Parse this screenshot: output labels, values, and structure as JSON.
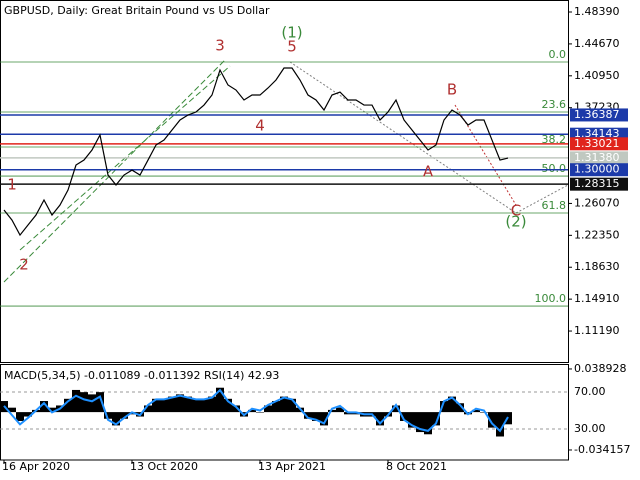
{
  "chart_data": [
    {
      "type": "line",
      "title": "GBPUSD, Daily:  Great Britain Pound vs US Dollar",
      "categories": [
        "16 Apr 2020",
        null,
        null,
        null,
        null,
        null,
        null,
        null,
        null,
        null,
        null,
        null,
        null,
        null,
        null,
        null,
        "13 Oct 2020",
        null,
        null,
        null,
        null,
        null,
        null,
        null,
        null,
        null,
        null,
        null,
        null,
        null,
        null,
        null,
        "13 Apr 2021",
        null,
        null,
        null,
        null,
        null,
        null,
        null,
        null,
        null,
        null,
        null,
        null,
        null,
        null,
        null,
        "8 Oct 2021",
        null,
        null,
        null,
        null,
        null,
        null,
        null,
        null,
        null,
        null,
        null,
        null,
        null,
        null,
        null
      ],
      "series": [
        {
          "color": "#000000",
          "values": [
            1.253,
            1.2413,
            1.2238,
            1.2355,
            1.2472,
            1.2647,
            1.2472,
            1.2588,
            1.2763,
            1.3055,
            1.3113,
            1.323,
            1.3405,
            1.2938,
            1.2822,
            1.2938,
            1.2996,
            1.2938,
            1.3113,
            1.3288,
            1.3346,
            1.3463,
            1.358,
            1.3638,
            1.3673,
            1.3754,
            1.3871,
            1.4163,
            1.3988,
            1.3929,
            1.3813,
            1.3871,
            1.3871,
            1.3953,
            1.4046,
            1.4186,
            1.4186,
            1.4046,
            1.3871,
            1.3813,
            1.3696,
            1.3871,
            1.3906,
            1.3813,
            1.3813,
            1.3754,
            1.3754,
            1.358,
            1.3673,
            1.3813,
            1.358,
            1.3463,
            1.3346,
            1.323,
            1.3288,
            1.358,
            1.3696,
            1.3638,
            1.3521,
            1.358,
            1.358,
            1.3346,
            1.3113,
            1.3136
          ]
        }
      ],
      "ylim": [
        1.0758,
        1.4979
      ],
      "yticks": [
        {
          "value": 1.4839,
          "label": "1.48390"
        },
        {
          "value": 1.4467,
          "label": "1.44670"
        },
        {
          "value": 1.4095,
          "label": "1.40950"
        },
        {
          "value": 1.3723,
          "label": "1.37230"
        },
        {
          "value": 1.2607,
          "label": "1.26070"
        },
        {
          "value": 1.2235,
          "label": "1.22350"
        },
        {
          "value": 1.1863,
          "label": "1.18630"
        },
        {
          "value": 1.1491,
          "label": "1.14910"
        },
        {
          "value": 1.1119,
          "label": "1.11190"
        }
      ],
      "levels": [
        {
          "value": 1.36387,
          "label": "1.36387",
          "color": "#1c3aa9"
        },
        {
          "value": 1.34143,
          "label": "1.34143",
          "color": "#1c3aa9"
        },
        {
          "value": 1.33021,
          "label": "1.33021",
          "color": "#e0241c"
        },
        {
          "value": 1.3138,
          "label": "1.31380",
          "color": "#c0c8c0"
        },
        {
          "value": 1.3,
          "label": "1.30000",
          "color": "#1c3aa9"
        },
        {
          "value": 1.28315,
          "label": "1.28315",
          "color": "#101010"
        }
      ],
      "fib_levels": [
        {
          "label": "0.0",
          "price": 1.4256
        },
        {
          "label": "23.6",
          "price": 1.3673
        },
        {
          "label": "38.2",
          "price": 1.3265
        },
        {
          "label": "50.0",
          "price": 1.2926
        },
        {
          "label": "61.8",
          "price": 1.2495
        },
        {
          "label": "100.0",
          "price": 1.141
        }
      ],
      "fib_color": "#3a8a3a",
      "waves": [
        {
          "text": "(1)",
          "at": 36,
          "price": 1.4594,
          "color": "#3a8a3a"
        },
        {
          "text": "5",
          "at": 36,
          "price": 1.4431,
          "color": "#b03030"
        },
        {
          "text": "3",
          "at": 27,
          "price": 1.4443,
          "color": "#b03030"
        },
        {
          "text": "4",
          "at": 32,
          "price": 1.351,
          "color": "#b03030"
        },
        {
          "text": "1",
          "at": 1,
          "price": 1.2822,
          "color": "#b03030"
        },
        {
          "text": "2",
          "at": 2.5,
          "price": 1.1889,
          "color": "#b03030"
        },
        {
          "text": "B",
          "at": 56,
          "price": 1.3929,
          "color": "#b03030"
        },
        {
          "text": "A",
          "at": 53,
          "price": 1.2973,
          "color": "#b03030"
        },
        {
          "text": "C",
          "at": 64,
          "price": 1.2518,
          "color": "#b03030"
        },
        {
          "text": "(2)",
          "at": 64,
          "price": 1.239,
          "color": "#3a8a3a"
        }
      ]
    },
    {
      "type": "macd",
      "title": "MACD(5,34,5) -0.011089 -0.011392 RSI(14) 42.93",
      "series": [
        {
          "name": "MACD",
          "color": "#000000",
          "values": [
            0.01,
            0.004,
            -0.008,
            -0.004,
            0.002,
            0.01,
            0.004,
            0.006,
            0.012,
            0.02,
            0.018,
            0.016,
            0.018,
            -0.006,
            -0.012,
            -0.006,
            -0.002,
            -0.004,
            0.006,
            0.012,
            0.012,
            0.014,
            0.016,
            0.014,
            0.012,
            0.012,
            0.014,
            0.022,
            0.012,
            0.006,
            -0.004,
            0.002,
            0.0,
            0.006,
            0.01,
            0.014,
            0.012,
            0.004,
            -0.006,
            -0.008,
            -0.012,
            0.002,
            0.004,
            -0.002,
            -0.002,
            -0.004,
            -0.004,
            -0.012,
            -0.004,
            0.006,
            -0.008,
            -0.014,
            -0.018,
            -0.02,
            -0.012,
            0.01,
            0.014,
            0.008,
            -0.002,
            0.002,
            0.0,
            -0.014,
            -0.022,
            -0.011
          ]
        },
        {
          "name": "RSI",
          "color": "#1e90ff",
          "axis": "y2",
          "values": [
            55,
            45,
            35,
            42,
            50,
            58,
            48,
            52,
            60,
            66,
            62,
            60,
            65,
            40,
            35,
            42,
            48,
            45,
            56,
            62,
            62,
            64,
            66,
            64,
            62,
            62,
            64,
            72,
            60,
            54,
            45,
            52,
            50,
            56,
            60,
            64,
            62,
            52,
            42,
            40,
            36,
            52,
            55,
            48,
            48,
            46,
            46,
            36,
            45,
            56,
            40,
            34,
            30,
            28,
            36,
            60,
            64,
            56,
            46,
            52,
            50,
            36,
            28,
            43
          ]
        }
      ],
      "ylim": [
        -0.0432,
        0.0425
      ],
      "yticks": [
        0.038928,
        -0.034157
      ],
      "y2lim": [
        -3.5,
        99.2
      ],
      "y2ticks": [
        {
          "value": 70,
          "label": "70.00"
        },
        {
          "value": 30,
          "label": "30.00"
        }
      ]
    }
  ]
}
